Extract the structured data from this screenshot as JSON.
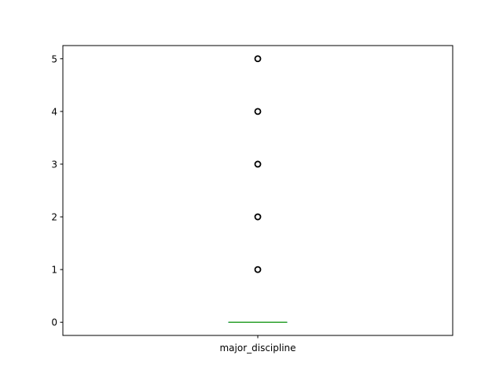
{
  "chart_data": {
    "type": "box",
    "categories": [
      "major_discipline"
    ],
    "ylim": [
      -0.25,
      5.25
    ],
    "yticks": [
      0,
      1,
      2,
      3,
      4,
      5
    ],
    "grid": false,
    "series": [
      {
        "category": "major_discipline",
        "q1": 0,
        "median": 0,
        "q3": 0,
        "whisker_low": 0,
        "whisker_high": 0,
        "outliers": [
          1,
          2,
          3,
          4,
          5
        ]
      }
    ]
  },
  "colors": {
    "median": "#2ca02c",
    "box": "#1f77b4",
    "outlier": "#000000",
    "axes": "#000000"
  }
}
